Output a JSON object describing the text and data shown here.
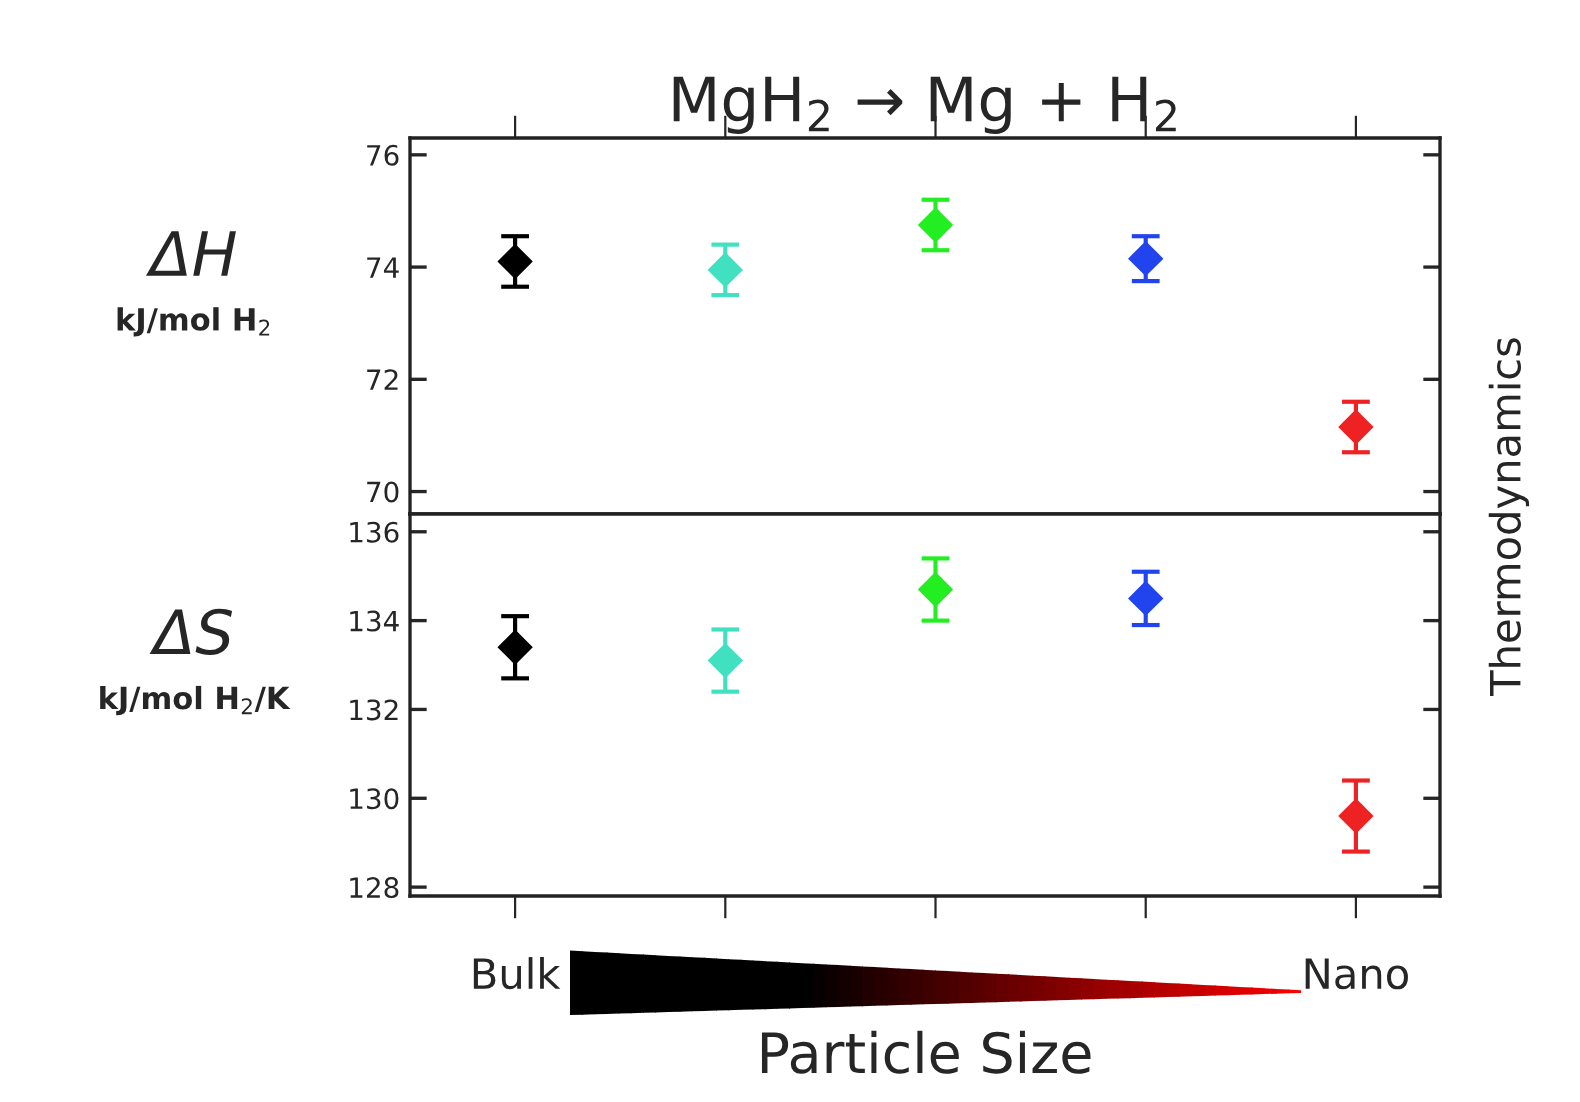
{
  "chart_data": [
    {
      "type": "scatter",
      "title": "MgH$_{2}$ → Mg + H$_{2}$",
      "ylabel": "ΔH\nkJ/mol H$_{2}$",
      "categories": [
        null,
        null,
        null,
        null,
        null
      ],
      "values": [
        74.1,
        73.95,
        74.75,
        74.15,
        71.15
      ],
      "errors": [
        0.45,
        0.45,
        0.45,
        0.4,
        0.45
      ],
      "colors": [
        "#000000",
        "#40e0c0",
        "#22ee22",
        "#2244ee",
        "#ee2222"
      ],
      "marker": "diamond",
      "ylim": [
        69.6,
        76.3
      ],
      "yticks": [
        70,
        72,
        74,
        76
      ],
      "tick_labels": "y",
      "annotations": [
        "Thermodynamics"
      ]
    },
    {
      "type": "scatter",
      "ylabel": "ΔS\nkJ/mol H$_{2}$/K",
      "xlabel": "Particle Size",
      "categories": [
        "Bulk",
        null,
        null,
        null,
        "Nano"
      ],
      "values": [
        133.4,
        133.1,
        134.7,
        134.5,
        129.6
      ],
      "errors": [
        0.7,
        0.7,
        0.7,
        0.6,
        0.8
      ],
      "colors": [
        "#000000",
        "#40e0c0",
        "#22ee22",
        "#2244ee",
        "#ee2222"
      ],
      "marker": "diamond",
      "ylim": [
        127.8,
        136.4
      ],
      "yticks": [
        128,
        130,
        132,
        134,
        136
      ]
    }
  ]
}
